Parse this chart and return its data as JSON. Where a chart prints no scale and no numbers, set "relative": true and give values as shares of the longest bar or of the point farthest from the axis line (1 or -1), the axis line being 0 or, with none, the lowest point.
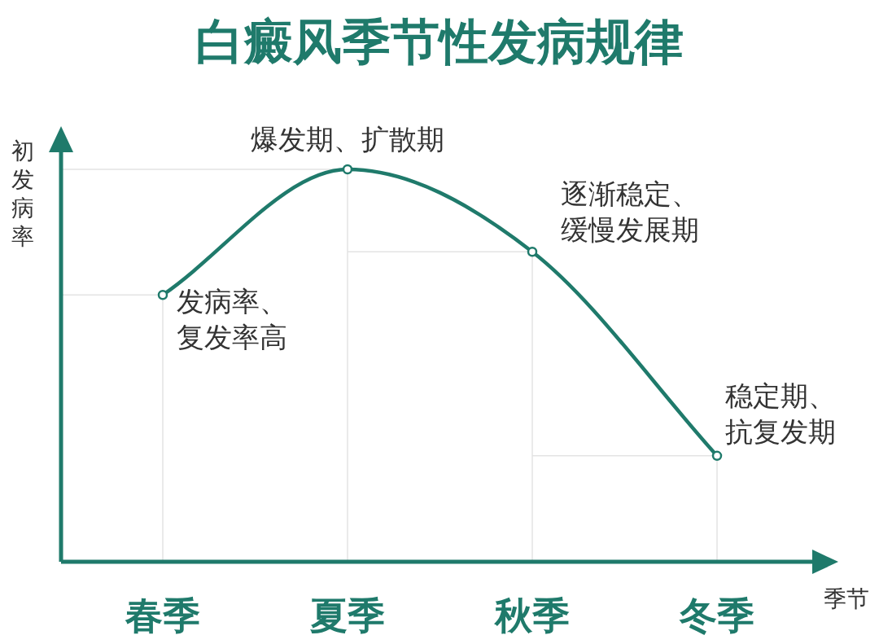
{
  "chart_data": {
    "type": "line",
    "title": "白癜风季节性发病规律",
    "xlabel": "季节",
    "ylabel": "初发病率",
    "relative": true,
    "categories": [
      "春季",
      "夏季",
      "秋季",
      "冬季"
    ],
    "series": [
      {
        "color": "#1f7a6b",
        "values": [
          0.68,
          1,
          0.79,
          0.27
        ]
      }
    ],
    "annotations": [
      {
        "text": "发病率、复发率高",
        "x": "春季",
        "y": 0.68
      },
      {
        "text": "爆发期、扩散期",
        "x": "夏季",
        "y": 1
      },
      {
        "text": "逐渐稳定、缓慢发展期",
        "x": "秋季",
        "y": 0.79
      },
      {
        "text": "稳定期、抗复发期",
        "x": "冬季",
        "y": 0.27
      }
    ],
    "grid": true,
    "marker": "circle",
    "line_style": "solid"
  }
}
